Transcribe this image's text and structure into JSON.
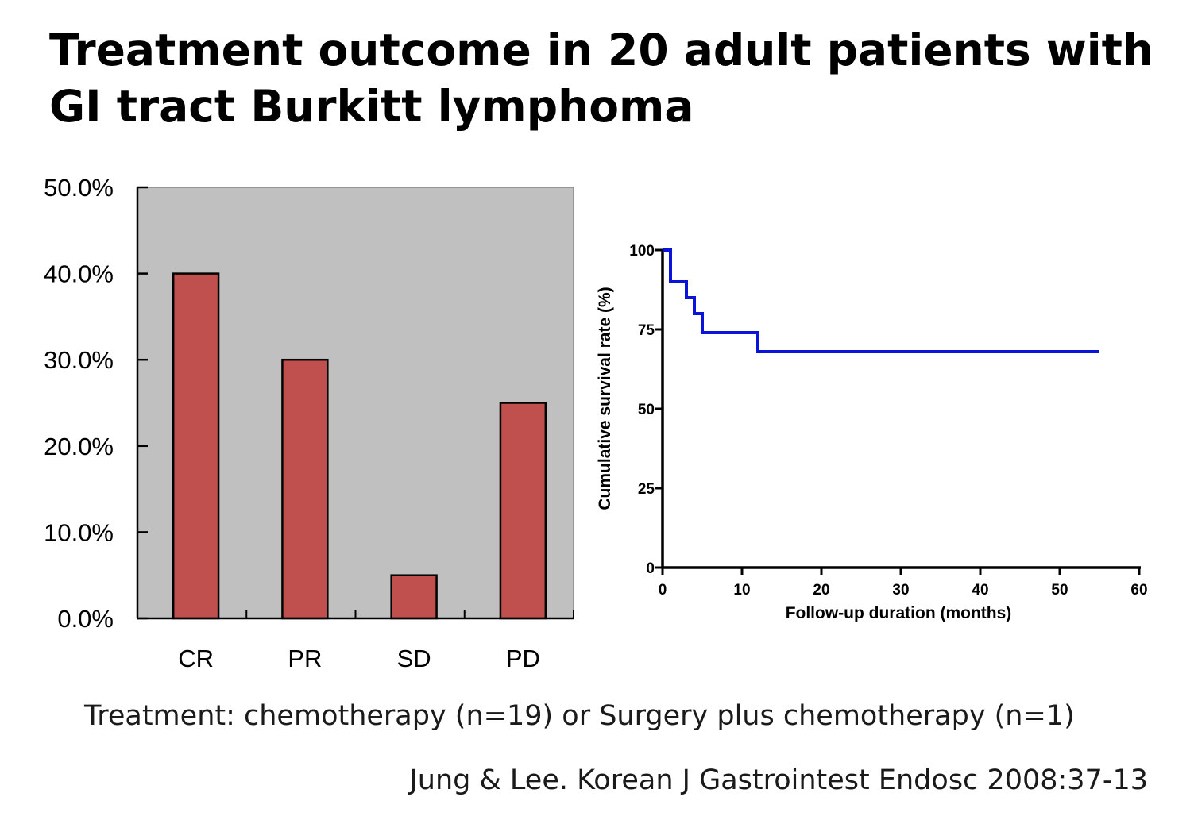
{
  "slide": {
    "title_line1": "Treatment outcome in 20 adult patients with",
    "title_line2": "GI tract Burkitt lymphoma",
    "caption": "Treatment: chemotherapy (n=19) or Surgery plus chemotherapy (n=1)",
    "citation": "Jung & Lee. Korean J Gastrointest Endosc 2008:37-13"
  },
  "chart_data": [
    {
      "type": "bar",
      "categories": [
        "CR",
        "PR",
        "SD",
        "PD"
      ],
      "values": [
        40.0,
        30.0,
        5.0,
        25.0
      ],
      "unit": "%",
      "ylim": [
        0,
        50
      ],
      "yticks": [
        "0.0%",
        "10.0%",
        "20.0%",
        "30.0%",
        "40.0%",
        "50.0%"
      ],
      "title": "",
      "xlabel": "",
      "ylabel": "",
      "grid": false,
      "plot_background": "#c0c0c0",
      "bar_color": "#c0504d"
    },
    {
      "type": "line",
      "step": true,
      "x": [
        0,
        1,
        1,
        3,
        3,
        4,
        4,
        5,
        5,
        12,
        12,
        55
      ],
      "y": [
        100,
        100,
        90,
        90,
        85,
        85,
        80,
        80,
        74,
        74,
        68,
        68
      ],
      "xlim": [
        0,
        60
      ],
      "ylim": [
        0,
        100
      ],
      "xticks": [
        "0",
        "10",
        "20",
        "30",
        "40",
        "50",
        "60"
      ],
      "yticks": [
        "0",
        "25",
        "50",
        "75",
        "100"
      ],
      "xlabel": "Follow-up duration (months)",
      "ylabel": "Cumulative survival rate (%)",
      "title": "",
      "grid": false,
      "line_color": "#0a14d8"
    }
  ]
}
